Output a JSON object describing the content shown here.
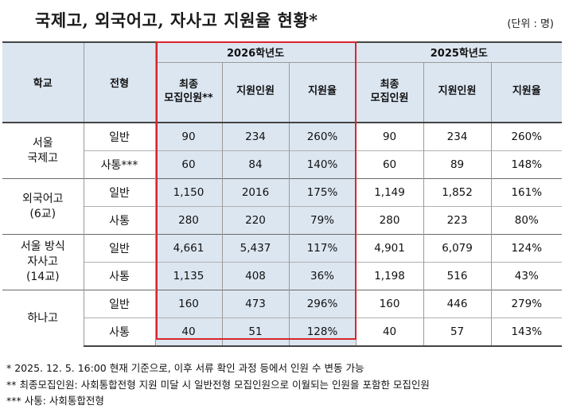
{
  "title": "국제고, 외국어고, 자사고 지원율 현황*",
  "unit": "(단위 : 명)",
  "header": {
    "school": "학교",
    "type": "전형",
    "year2026": "2026학년도",
    "year2025": "2025학년도",
    "col_final_line1": "최종",
    "col_final_line2": "모집인원**",
    "col_final_line2_2025": "모집인원",
    "col_applicants": "지원인원",
    "col_rate": "지원율"
  },
  "rows": [
    {
      "school": "서울\n국제고",
      "type": "일반",
      "r26": [
        "90",
        "234",
        "260%"
      ],
      "r25": [
        "90",
        "234",
        "260%"
      ]
    },
    {
      "type": "사통***",
      "r26": [
        "60",
        "84",
        "140%"
      ],
      "r25": [
        "60",
        "89",
        "148%"
      ]
    },
    {
      "school": "외국어고\n(6교)",
      "type": "일반",
      "r26": [
        "1,150",
        "2016",
        "175%"
      ],
      "r25": [
        "1,149",
        "1,852",
        "161%"
      ]
    },
    {
      "type": "사통",
      "r26": [
        "280",
        "220",
        "79%"
      ],
      "r25": [
        "280",
        "223",
        "80%"
      ]
    },
    {
      "school": "서울 방식\n자사고\n(14교)",
      "type": "일반",
      "r26": [
        "4,661",
        "5,437",
        "117%"
      ],
      "r25": [
        "4,901",
        "6,079",
        "124%"
      ]
    },
    {
      "type": "사통",
      "r26": [
        "1,135",
        "408",
        "36%"
      ],
      "r25": [
        "1,198",
        "516",
        "43%"
      ]
    },
    {
      "school": "하나고",
      "type": "일반",
      "r26": [
        "160",
        "473",
        "296%"
      ],
      "r25": [
        "160",
        "446",
        "279%"
      ]
    },
    {
      "type": "사통",
      "r26": [
        "40",
        "51",
        "128%"
      ],
      "r25": [
        "40",
        "57",
        "143%"
      ]
    }
  ],
  "notes": [
    "* 2025. 12. 5. 16:00 현재 기준으로, 이후 서류 확인 과정 등에서 인원 수 변동 가능",
    "** 최종모집인원: 사회통합전형 지원 미달 시 일반전형 모집인원으로 이월되는 인원을 포함한 모집인원",
    "*** 사통: 사회통합전형"
  ],
  "colors": {
    "header_bg": "#dce6f1",
    "highlight_border": "#d9262c"
  }
}
